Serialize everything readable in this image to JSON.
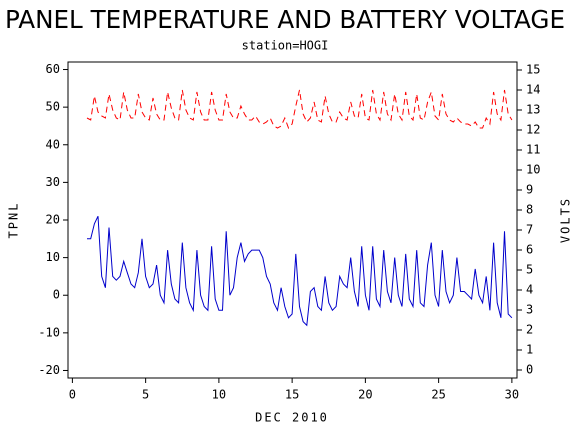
{
  "chart_data": {
    "type": "line",
    "title": "PANEL TEMPERATURE AND BATTERY VOLTAGE",
    "subtitle": "station=HOGI",
    "x_label": "DEC 2010",
    "y_label": "TPNL",
    "y2_label": "VOLTS",
    "xlim": [
      -0.3,
      30.35
    ],
    "xticks": [
      0,
      5,
      10,
      15,
      20,
      25,
      30
    ],
    "ylim": [
      -22,
      62
    ],
    "yticks": [
      -20,
      -10,
      0,
      10,
      20,
      30,
      40,
      50,
      60
    ],
    "y2lim": [
      -0.4,
      15.4
    ],
    "y2ticks": [
      0,
      1,
      2,
      3,
      4,
      5,
      6,
      7,
      8,
      9,
      10,
      11,
      12,
      13,
      14,
      15
    ],
    "x": [
      1,
      1.25,
      1.5,
      1.75,
      2,
      2.25,
      2.5,
      2.75,
      3,
      3.25,
      3.5,
      3.75,
      4,
      4.25,
      4.5,
      4.75,
      5,
      5.25,
      5.5,
      5.75,
      6,
      6.25,
      6.5,
      6.75,
      7,
      7.25,
      7.5,
      7.75,
      8,
      8.25,
      8.5,
      8.75,
      9,
      9.25,
      9.5,
      9.75,
      10,
      10.25,
      10.5,
      10.75,
      11,
      11.25,
      11.5,
      11.75,
      12,
      12.25,
      12.5,
      12.75,
      13,
      13.25,
      13.5,
      13.75,
      14,
      14.25,
      14.5,
      14.75,
      15,
      15.25,
      15.5,
      15.75,
      16,
      16.25,
      16.5,
      16.75,
      17,
      17.25,
      17.5,
      17.75,
      18,
      18.25,
      18.5,
      18.75,
      19,
      19.25,
      19.5,
      19.75,
      20,
      20.25,
      20.5,
      20.75,
      21,
      21.25,
      21.5,
      21.75,
      22,
      22.25,
      22.5,
      22.75,
      23,
      23.25,
      23.5,
      23.75,
      24,
      24.25,
      24.5,
      24.75,
      25,
      25.25,
      25.5,
      25.75,
      26,
      26.25,
      26.5,
      26.75,
      27,
      27.25,
      27.5,
      27.75,
      28,
      28.25,
      28.5,
      28.75,
      29,
      29.25,
      29.5,
      29.75,
      30
    ],
    "series": [
      {
        "name": "TPNL",
        "color": "#0000cc",
        "values": [
          15,
          15,
          19,
          21,
          5,
          2,
          18,
          5,
          4,
          5,
          9,
          6,
          3,
          2,
          6,
          15,
          5,
          2,
          3,
          8,
          0,
          -2,
          12,
          3,
          -1,
          -2,
          14,
          2,
          -2,
          -4,
          12,
          0,
          -3,
          -4,
          13,
          -1,
          -4,
          -4,
          17,
          0,
          2,
          10,
          14,
          9,
          11,
          12,
          12,
          12,
          10,
          5,
          3,
          -2,
          -4,
          2,
          -3,
          -6,
          -5,
          11,
          -3,
          -7,
          -8,
          1,
          2,
          -3,
          -4,
          5,
          -2,
          -4,
          -3,
          5,
          3,
          2,
          10,
          1,
          -3,
          13,
          0,
          -4,
          13,
          -1,
          -3,
          12,
          1,
          -2,
          10,
          0,
          -3,
          11,
          -1,
          -3,
          12,
          -2,
          -3,
          8,
          14,
          0,
          -3,
          12,
          1,
          -2,
          0,
          10,
          1,
          1,
          0,
          -1,
          7,
          0,
          -2,
          5,
          -4,
          14,
          -2,
          -6,
          17,
          -5,
          -6
        ]
      },
      {
        "name": "VOLTS",
        "color": "#ff0000",
        "axis": "y2",
        "values": [
          12.6,
          12.5,
          13.7,
          12.9,
          12.7,
          12.6,
          13.8,
          13.0,
          12.6,
          12.5,
          13.9,
          13.0,
          12.6,
          12.6,
          13.8,
          12.9,
          12.6,
          12.5,
          13.6,
          12.8,
          12.5,
          12.5,
          13.9,
          13.1,
          12.6,
          12.5,
          14.0,
          13.0,
          12.6,
          12.5,
          13.9,
          12.9,
          12.5,
          12.5,
          13.9,
          13.0,
          12.5,
          12.5,
          13.8,
          12.9,
          12.6,
          12.6,
          13.2,
          12.8,
          12.5,
          12.5,
          12.7,
          12.4,
          12.3,
          12.4,
          12.6,
          12.2,
          12.1,
          12.2,
          12.6,
          12.1,
          12.3,
          13.2,
          14.0,
          12.8,
          12.4,
          12.6,
          13.4,
          12.5,
          12.4,
          13.7,
          12.8,
          12.4,
          12.4,
          12.9,
          12.6,
          12.5,
          13.4,
          12.7,
          12.6,
          13.8,
          12.6,
          12.5,
          14.0,
          12.8,
          12.5,
          13.9,
          12.8,
          12.5,
          13.8,
          12.8,
          12.5,
          13.9,
          12.7,
          12.5,
          13.8,
          12.6,
          12.5,
          13.4,
          13.9,
          12.7,
          12.5,
          13.8,
          12.8,
          12.5,
          12.4,
          12.6,
          12.4,
          12.3,
          12.3,
          12.2,
          12.4,
          12.1,
          12.1,
          12.6,
          12.3,
          13.9,
          12.8,
          12.5,
          14.0,
          12.8,
          12.5
        ]
      }
    ]
  }
}
